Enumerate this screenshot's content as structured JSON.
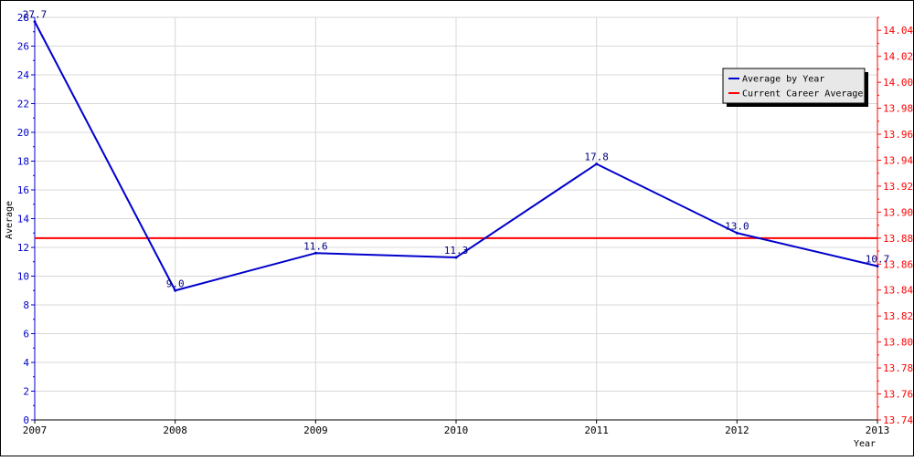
{
  "chart_data": {
    "type": "line",
    "x": [
      "2007",
      "2008",
      "2009",
      "2010",
      "2011",
      "2012",
      "2013"
    ],
    "series": [
      {
        "name": "Average by Year",
        "values": [
          27.7,
          9.0,
          11.6,
          11.3,
          17.8,
          13.0,
          10.7
        ],
        "labels": [
          "27.7",
          "9.0",
          "11.6",
          "11.3",
          "17.8",
          "13.0",
          "10.7"
        ],
        "color": "#0000cc"
      },
      {
        "name": "Current Career Average",
        "value": 13.88,
        "color": "#ff0000"
      }
    ],
    "xlabel": "Year",
    "ylabel": "Average",
    "ylim": [
      0,
      28
    ],
    "y_ticks": [
      "0",
      "2",
      "4",
      "6",
      "8",
      "10",
      "12",
      "14",
      "16",
      "18",
      "20",
      "22",
      "24",
      "26",
      "28"
    ],
    "y2lim": [
      13.74,
      14.05
    ],
    "y2_ticks": [
      "13.74",
      "13.76",
      "13.78",
      "13.80",
      "13.82",
      "13.84",
      "13.86",
      "13.88",
      "13.90",
      "13.92",
      "13.94",
      "13.96",
      "13.98",
      "14.00",
      "14.02",
      "14.04"
    ],
    "grid": true,
    "legend_position": "top-right",
    "colors": {
      "left_axis": "#0000cc",
      "right_axis": "#ff0000",
      "grid": "#d8d8d8",
      "legend_bg": "#e8e8e8"
    }
  }
}
